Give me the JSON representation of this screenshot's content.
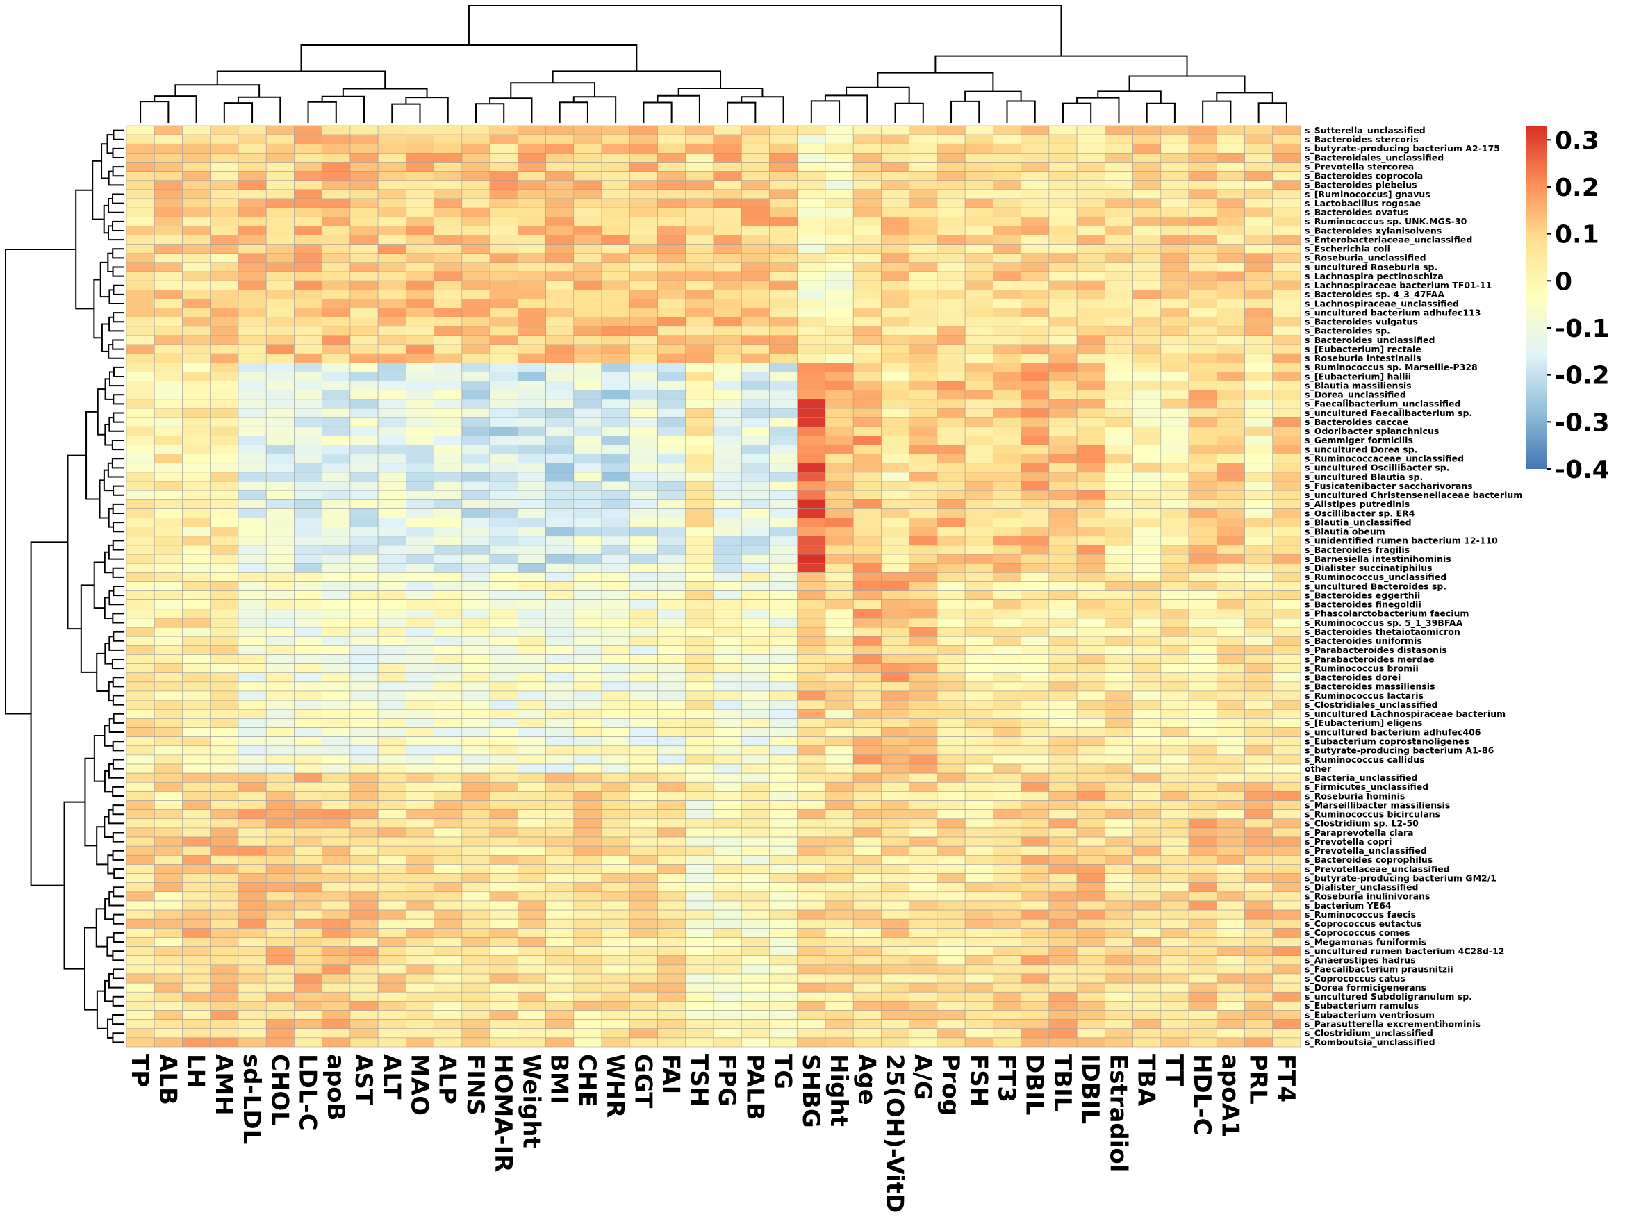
{
  "chart_data": {
    "type": "heatmap",
    "title": "",
    "columns": [
      "TP",
      "ALB",
      "LH",
      "AMH",
      "sd-LDL",
      "CHOL",
      "LDL-C",
      "apoB",
      "AST",
      "ALT",
      "MAO",
      "ALP",
      "FINS",
      "HOMA-IR",
      "Weight",
      "BMI",
      "CHE",
      "WHR",
      "GGT",
      "FAI",
      "TSH",
      "FPG",
      "PALB",
      "TG",
      "SHBG",
      "Hight",
      "Age",
      "25(OH)-VitD",
      "A/G",
      "Prog",
      "FSH",
      "FT3",
      "DBIL",
      "TBIL",
      "IDBIL",
      "Estradiol",
      "TBA",
      "TT",
      "HDL-C",
      "apoA1",
      "PRL",
      "FT4"
    ],
    "rows": [
      "s_Sutterella_unclassified",
      "s_Bacteroides stercoris",
      "s_butyrate-producing bacterium A2-175",
      "s_Bacteroidales_unclassified",
      "s_Prevotella stercorea",
      "s_Bacteroides coprocola",
      "s_Bacteroides plebeius",
      "s_[Ruminococcus] gnavus",
      "s_Lactobacillus rogosae",
      "s_Bacteroides ovatus",
      "s_Ruminococcus sp. UNK.MGS-30",
      "s_Bacteroides xylanisolvens",
      "s_Enterobacteriaceae_unclassified",
      "s_Escherichia coli",
      "s_Roseburia_unclassified",
      "s_uncultured Roseburia sp.",
      "s_Lachnospira pectinoschiza",
      "s_Lachnospiraceae bacterium TF01-11",
      "s_Bacteroides sp. 4_3_47FAA",
      "s_Lachnospiraceae_unclassified",
      "s_uncultured bacterium adhufec113",
      "s_Bacteroides vulgatus",
      "s_Bacteroides sp.",
      "s_Bacteroides_unclassified",
      "s_[Eubacterium] rectale",
      "s_Roseburia intestinalis",
      "s_Ruminococcus sp. Marseille-P328",
      "s_[Eubacterium] hallii",
      "s_Blautia massiliensis",
      "s_Dorea_unclassified",
      "s_Faecalibacterium_unclassified",
      "s_uncultured Faecalibacterium sp.",
      "s_Bacteroides caccae",
      "s_Odoribacter splanchnicus",
      "s_Gemmiger formicilis",
      "s_uncultured Dorea sp.",
      "s_Ruminococcaceae_unclassified",
      "s_uncultured Oscillibacter sp.",
      "s_uncultured Blautia sp.",
      "s_Fusicatenibacter saccharivorans",
      "s_uncultured Christensenellaceae bacterium",
      "s_Alistipes putredinis",
      "s_Oscillibacter sp. ER4",
      "s_Blautia_unclassified",
      "s_Blautia obeum",
      "s_unidentified rumen bacterium 12-110",
      "s_Bacteroides fragilis",
      "s_Barnesiella intestinihominis",
      "s_Dialister succinatiphilus",
      "s_Ruminococcus_unclassified",
      "s_uncultured Bacteroides sp.",
      "s_Bacteroides eggerthii",
      "s_Bacteroides finegoldii",
      "s_Phascolarctobacterium faecium",
      "s_Ruminococcus sp. 5_1_39BFAA",
      "s_Bacteroides thetaiotaomicron",
      "s_Bacteroides uniformis",
      "s_Parabacteroides distasonis",
      "s_Parabacteroides merdae",
      "s_Ruminococcus bromii",
      "s_Bacteroides dorei",
      "s_Bacteroides massiliensis",
      "s_Ruminococcus lactaris",
      "s_Clostridiales_unclassified",
      "s_uncultured Lachnospiraceae bacterium",
      "s_[Eubacterium] eligens",
      "s_uncultured bacterium adhufec406",
      "s_Eubacterium coprostanoligenes",
      "s_butyrate-producing bacterium A1-86",
      "s_Ruminococcus callidus",
      "other",
      "s_Bacteria_unclassified",
      "s_Firmicutes_unclassified",
      "s_Roseburia hominis",
      "s_Marseillibacter massiliensis",
      "s_Ruminococcus bicirculans",
      "s_Clostridium sp. L2-50",
      "s_Paraprevotella clara",
      "s_Prevotella copri",
      "s_Prevotella_unclassified",
      "s_Bacteroides coprophilus",
      "s_Prevotellaceae_unclassified",
      "s_butyrate-producing bacterium GM2/1",
      "s_Dialister_unclassified",
      "s_Roseburia inulinivorans",
      "s_bacterium YE64",
      "s_Ruminococcus faecis",
      "s_Coprococcus eutactus",
      "s_Coprococcus comes",
      "s_Megamonas funiformis",
      "s_uncultured rumen bacterium 4C28d-12",
      "s_Anaerostipes hadrus",
      "s_Faecalibacterium prausnitzii",
      "s_Coprococcus catus",
      "s_Dorea formicigenerans",
      "s_uncultured Subdoligranulum sp.",
      "s_Eubacterium ramulus",
      "s_Eubacterium ventriosum",
      "s_Parasutterella excrementihominis",
      "s_Clostridium_unclassified",
      "s_Romboutsia_unclassified"
    ],
    "value_range": [
      -0.4,
      0.33
    ],
    "colorbar": {
      "ticks": [
        0.3,
        0.2,
        0.1,
        0,
        -0.1,
        -0.2,
        -0.3,
        -0.4
      ],
      "tick_labels": [
        "0.3",
        "0.2",
        "0.1",
        "0",
        "-0.1",
        "-0.2",
        "-0.3",
        "-0.4"
      ],
      "colors": [
        "#4575b4",
        "#91bfdb",
        "#e0f3f8",
        "#ffffbf",
        "#fee090",
        "#fc8d59",
        "#d73027"
      ]
    },
    "column_dendrogram": true,
    "row_dendrogram": true
  }
}
